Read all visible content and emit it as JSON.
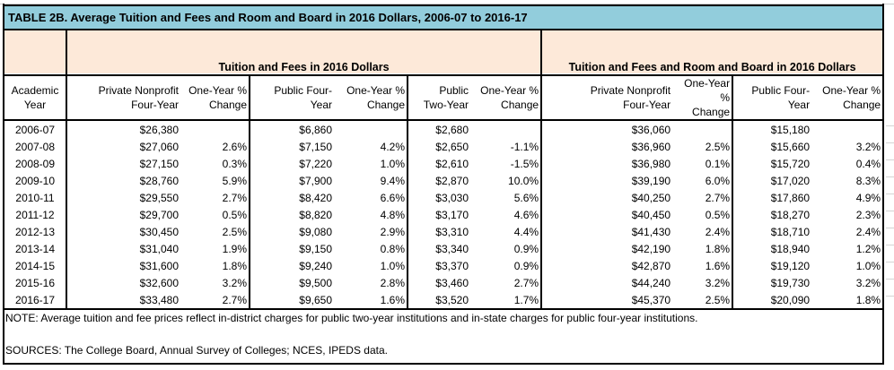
{
  "title": "TABLE 2B. Average Tuition and Fees and Room and Board in 2016 Dollars, 2006-07 to 2016-17",
  "group_headers": [
    "Tuition and Fees in 2016 Dollars",
    "Tuition and Fees and Room and Board in 2016 Dollars"
  ],
  "columns": [
    [
      "Academic",
      "Year"
    ],
    [
      "Private Nonprofit",
      "Four-Year"
    ],
    [
      "One-Year %",
      "Change"
    ],
    [
      "Public Four-",
      "Year"
    ],
    [
      "One-Year %",
      "Change"
    ],
    [
      "Public",
      "Two-Year"
    ],
    [
      "One-Year %",
      "Change"
    ],
    [
      "Private Nonprofit",
      "Four-Year"
    ],
    [
      "One-Year %",
      "Change"
    ],
    [
      "Public Four-",
      "Year"
    ],
    [
      "One-Year %",
      "Change"
    ]
  ],
  "rows": [
    [
      "2006-07",
      "$26,380",
      "",
      "$6,860",
      "",
      "$2,680",
      "",
      "$36,060",
      "",
      "$15,180",
      ""
    ],
    [
      "2007-08",
      "$27,060",
      "2.6%",
      "$7,150",
      "4.2%",
      "$2,650",
      "-1.1%",
      "$36,960",
      "2.5%",
      "$15,660",
      "3.2%"
    ],
    [
      "2008-09",
      "$27,150",
      "0.3%",
      "$7,220",
      "1.0%",
      "$2,610",
      "-1.5%",
      "$36,980",
      "0.1%",
      "$15,720",
      "0.4%"
    ],
    [
      "2009-10",
      "$28,760",
      "5.9%",
      "$7,900",
      "9.4%",
      "$2,870",
      "10.0%",
      "$39,190",
      "6.0%",
      "$17,020",
      "8.3%"
    ],
    [
      "2010-11",
      "$29,550",
      "2.7%",
      "$8,420",
      "6.6%",
      "$3,030",
      "5.6%",
      "$40,250",
      "2.7%",
      "$17,860",
      "4.9%"
    ],
    [
      "2011-12",
      "$29,700",
      "0.5%",
      "$8,820",
      "4.8%",
      "$3,170",
      "4.6%",
      "$40,450",
      "0.5%",
      "$18,270",
      "2.3%"
    ],
    [
      "2012-13",
      "$30,450",
      "2.5%",
      "$9,080",
      "2.9%",
      "$3,310",
      "4.4%",
      "$41,430",
      "2.4%",
      "$18,710",
      "2.4%"
    ],
    [
      "2013-14",
      "$31,040",
      "1.9%",
      "$9,150",
      "0.8%",
      "$3,340",
      "0.9%",
      "$42,190",
      "1.8%",
      "$18,940",
      "1.2%"
    ],
    [
      "2014-15",
      "$31,600",
      "1.8%",
      "$9,240",
      "1.0%",
      "$3,370",
      "0.9%",
      "$42,870",
      "1.6%",
      "$19,120",
      "1.0%"
    ],
    [
      "2015-16",
      "$32,600",
      "3.2%",
      "$9,500",
      "2.8%",
      "$3,460",
      "2.7%",
      "$44,240",
      "3.2%",
      "$19,730",
      "3.2%"
    ],
    [
      "2016-17",
      "$33,480",
      "2.7%",
      "$9,650",
      "1.6%",
      "$3,520",
      "1.7%",
      "$45,370",
      "2.5%",
      "$20,090",
      "1.8%"
    ]
  ],
  "note": "NOTE: Average tuition and fee prices reflect in-district charges for public two-year institutions and in-state charges for public four-year institutions.",
  "sources": "SOURCES: The College Board, Annual Survey of Colleges; NCES, IPEDS data.",
  "colors": {
    "title_bg": "#92CDDC",
    "header_bg": "#FDE9D9"
  }
}
